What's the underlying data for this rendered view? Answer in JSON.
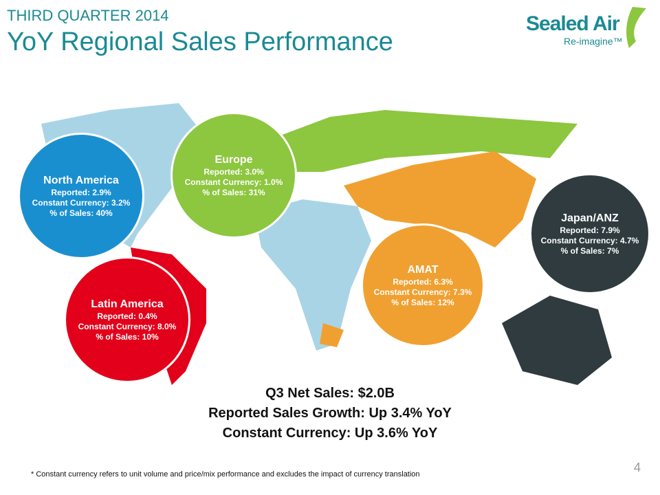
{
  "header": {
    "subtitle": "THIRD QUARTER 2014",
    "title": "YoY Regional Sales Performance"
  },
  "logo": {
    "name": "Sealed Air",
    "tagline": "Re-imagine™"
  },
  "regions": [
    {
      "name": "North America",
      "lines": [
        "Reported: 2.9%",
        "Constant Currency: 3.2%",
        "% of Sales: 40%"
      ]
    },
    {
      "name": "Europe",
      "lines": [
        "Reported: 3.0%",
        "Constant Currency: 1.0%",
        "% of Sales: 31%"
      ]
    },
    {
      "name": "Latin America",
      "lines": [
        "Reported: 0.4%",
        "Constant Currency: 8.0%",
        "% of Sales: 10%"
      ]
    },
    {
      "name": "AMAT",
      "lines": [
        "Reported: 6.3%",
        "Constant Currency: 7.3%",
        "% of Sales: 12%"
      ]
    },
    {
      "name": "Japan/ANZ",
      "lines": [
        "Reported: 7.9%",
        "Constant Currency: 4.7%",
        "% of Sales: 7%"
      ]
    }
  ],
  "summary": [
    "Q3 Net Sales: $2.0B",
    "Reported Sales Growth: Up 3.4% YoY",
    "Constant Currency: Up 3.6% YoY"
  ],
  "footnote": "* Constant currency refers to unit volume and price/mix performance and excludes the impact of currency translation",
  "page_number": "4"
}
